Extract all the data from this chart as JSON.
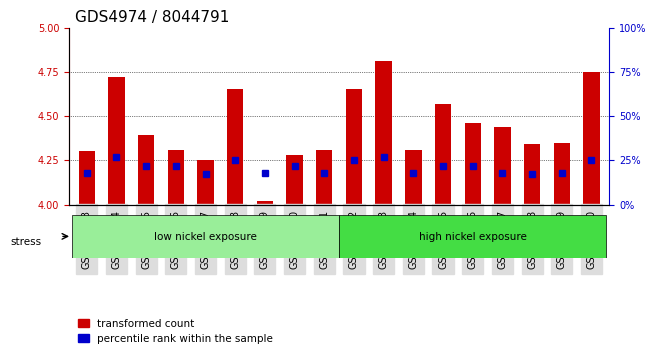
{
  "title": "GDS4974 / 8044791",
  "samples": [
    "GSM992693",
    "GSM992694",
    "GSM992695",
    "GSM992696",
    "GSM992697",
    "GSM992698",
    "GSM992699",
    "GSM992700",
    "GSM992701",
    "GSM992702",
    "GSM992703",
    "GSM992704",
    "GSM992705",
    "GSM992706",
    "GSM992707",
    "GSM992708",
    "GSM992709",
    "GSM992710"
  ],
  "transformed_count": [
    4.3,
    4.72,
    4.39,
    4.31,
    4.25,
    4.65,
    4.02,
    4.28,
    4.31,
    4.65,
    4.81,
    4.31,
    4.57,
    4.46,
    4.44,
    4.34,
    4.35,
    4.75
  ],
  "percentile_rank": [
    18,
    27,
    22,
    22,
    17,
    25,
    18,
    22,
    18,
    25,
    27,
    18,
    22,
    22,
    18,
    17,
    18,
    25
  ],
  "bar_bottom": 4.0,
  "ylim_left": [
    4.0,
    5.0
  ],
  "ylim_right": [
    0,
    100
  ],
  "yticks_left": [
    4.0,
    4.25,
    4.5,
    4.75,
    5.0
  ],
  "yticks_right": [
    0,
    25,
    50,
    75,
    100
  ],
  "grid_lines": [
    4.25,
    4.5,
    4.75
  ],
  "bar_color": "#cc0000",
  "dot_color": "#0000cc",
  "low_group": {
    "label": "low nickel exposure",
    "start": 0,
    "end": 9
  },
  "high_group": {
    "label": "high nickel exposure",
    "start": 9,
    "end": 18
  },
  "group_color_low": "#99ee99",
  "group_color_high": "#44dd44",
  "stress_label": "stress",
  "legend_bar": "transformed count",
  "legend_dot": "percentile rank within the sample",
  "title_fontsize": 11,
  "tick_fontsize": 7,
  "axis_color_left": "#cc0000",
  "axis_color_right": "#0000cc"
}
